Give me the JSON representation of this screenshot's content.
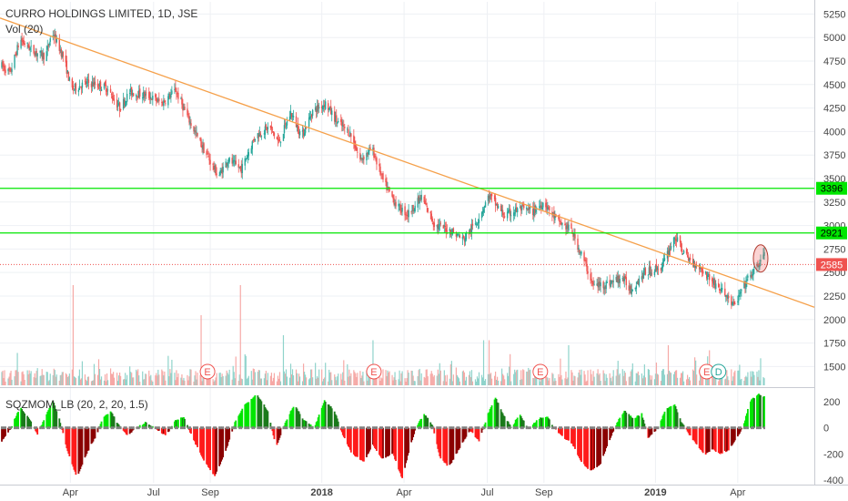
{
  "header": {
    "title": "CURRO HOLDINGS LIMITED, 1D, JSE",
    "volume_label": "Vol (20)",
    "indicator_label": "SQZMOM_LB (20, 2, 20, 1.5)"
  },
  "colors": {
    "up": "#26a69a",
    "down": "#ef5350",
    "trendline": "#f5a04a",
    "level_line": "#00e600",
    "last_price": "#ef5350",
    "mom_bright_green": "#00e600",
    "mom_dark_green": "#1b7a1b",
    "mom_bright_red": "#ff1a1a",
    "mom_dark_red": "#8b0000",
    "squeeze_dot": "#808080",
    "event_earnings": "#ef5350",
    "event_dividend": "#26a69a"
  },
  "chart_data": [
    {
      "type": "candlestick",
      "name": "price",
      "title": "CURRO HOLDINGS LIMITED, 1D, JSE",
      "x_range": [
        "2017-01-16",
        "2019-04-30"
      ],
      "y_range": [
        1300,
        5380
      ],
      "y_ticks": [
        1500,
        1750,
        2000,
        2250,
        2500,
        2750,
        3000,
        3250,
        3500,
        3750,
        4000,
        4250,
        4500,
        4750,
        5000,
        5250
      ],
      "x_ticks": [
        {
          "date": "2017-04-01",
          "label": "Apr"
        },
        {
          "date": "2017-07-01",
          "label": "Jul"
        },
        {
          "date": "2017-09-01",
          "label": "Sep"
        },
        {
          "date": "2018-01-01",
          "label": "2018"
        },
        {
          "date": "2018-04-01",
          "label": "Apr"
        },
        {
          "date": "2018-07-01",
          "label": "Jul"
        },
        {
          "date": "2018-09-01",
          "label": "Sep"
        },
        {
          "date": "2019-01-01",
          "label": "2019"
        },
        {
          "date": "2019-04-01",
          "label": "Apr"
        }
      ],
      "path_keypoints": [
        [
          "2017-01-16",
          4700
        ],
        [
          "2017-01-25",
          4620
        ],
        [
          "2017-02-05",
          4980
        ],
        [
          "2017-02-20",
          4850
        ],
        [
          "2017-03-05",
          4800
        ],
        [
          "2017-03-12",
          5060
        ],
        [
          "2017-03-25",
          4780
        ],
        [
          "2017-04-02",
          4450
        ],
        [
          "2017-04-20",
          4520
        ],
        [
          "2017-05-10",
          4470
        ],
        [
          "2017-05-25",
          4250
        ],
        [
          "2017-06-05",
          4420
        ],
        [
          "2017-06-25",
          4380
        ],
        [
          "2017-07-10",
          4300
        ],
        [
          "2017-07-25",
          4440
        ],
        [
          "2017-08-05",
          4200
        ],
        [
          "2017-08-20",
          3900
        ],
        [
          "2017-09-10",
          3520
        ],
        [
          "2017-09-20",
          3700
        ],
        [
          "2017-10-05",
          3600
        ],
        [
          "2017-10-20",
          3950
        ],
        [
          "2017-11-05",
          4050
        ],
        [
          "2017-11-15",
          3880
        ],
        [
          "2017-11-28",
          4200
        ],
        [
          "2017-12-10",
          3950
        ],
        [
          "2017-12-22",
          4220
        ],
        [
          "2018-01-05",
          4300
        ],
        [
          "2018-01-18",
          4100
        ],
        [
          "2018-02-01",
          3980
        ],
        [
          "2018-02-12",
          3700
        ],
        [
          "2018-02-25",
          3820
        ],
        [
          "2018-03-10",
          3450
        ],
        [
          "2018-03-25",
          3200
        ],
        [
          "2018-04-05",
          3120
        ],
        [
          "2018-04-20",
          3300
        ],
        [
          "2018-05-05",
          3000
        ],
        [
          "2018-05-20",
          2960
        ],
        [
          "2018-06-05",
          2850
        ],
        [
          "2018-06-20",
          3050
        ],
        [
          "2018-07-03",
          3320
        ],
        [
          "2018-07-20",
          3100
        ],
        [
          "2018-08-05",
          3180
        ],
        [
          "2018-08-20",
          3150
        ],
        [
          "2018-09-01",
          3250
        ],
        [
          "2018-09-15",
          3050
        ],
        [
          "2018-10-01",
          2950
        ],
        [
          "2018-10-15",
          2620
        ],
        [
          "2018-10-25",
          2360
        ],
        [
          "2018-11-10",
          2380
        ],
        [
          "2018-11-25",
          2450
        ],
        [
          "2018-12-05",
          2320
        ],
        [
          "2018-12-20",
          2500
        ],
        [
          "2019-01-08",
          2560
        ],
        [
          "2019-01-22",
          2880
        ],
        [
          "2019-02-05",
          2650
        ],
        [
          "2019-02-18",
          2560
        ],
        [
          "2019-03-05",
          2400
        ],
        [
          "2019-03-20",
          2250
        ],
        [
          "2019-03-28",
          2140
        ],
        [
          "2019-04-10",
          2400
        ],
        [
          "2019-04-22",
          2560
        ],
        [
          "2019-04-30",
          2700
        ]
      ],
      "trendline": {
        "from": [
          "2017-02-20",
          5080
        ],
        "to": [
          "2019-04-30",
          2320
        ]
      },
      "horizontal_levels": [
        3396,
        2921
      ],
      "last_price": 2585,
      "price_tags": [
        {
          "value": 3396,
          "label": "3396"
        },
        {
          "value": 2921,
          "label": "2921"
        },
        {
          "value": 2585,
          "label": "2585"
        }
      ],
      "annotation": {
        "type": "ellipse",
        "date": "2019-04-26",
        "value": 2650
      }
    },
    {
      "type": "bar",
      "name": "volume",
      "title": "Vol (20)",
      "spikes": [
        {
          "date": "2017-04-04",
          "rel": 1.0
        },
        {
          "date": "2017-08-22",
          "rel": 0.7
        },
        {
          "date": "2017-10-04",
          "rel": 1.0
        },
        {
          "date": "2017-11-20",
          "rel": 0.5
        },
        {
          "date": "2018-02-26",
          "rel": 0.45
        },
        {
          "date": "2018-06-27",
          "rel": 0.45
        },
        {
          "date": "2018-07-03",
          "rel": 0.45
        },
        {
          "date": "2018-09-28",
          "rel": 0.4
        },
        {
          "date": "2019-01-15",
          "rel": 0.4
        },
        {
          "date": "2019-03-01",
          "rel": 0.35
        }
      ],
      "events": [
        {
          "date": "2017-08-29",
          "label": "E",
          "kind": "earnings"
        },
        {
          "date": "2018-02-27",
          "label": "E",
          "kind": "earnings"
        },
        {
          "date": "2018-08-28",
          "label": "E",
          "kind": "earnings"
        },
        {
          "date": "2019-02-26",
          "label": "E",
          "kind": "earnings"
        },
        {
          "date": "2019-03-11",
          "label": "D",
          "kind": "dividend"
        }
      ]
    },
    {
      "type": "histogram",
      "name": "squeeze_momentum",
      "title": "SQZMOM_LB (20, 2, 20, 1.5)",
      "y_range": [
        -420,
        290
      ],
      "y_ticks": [
        200,
        0,
        -200,
        -400
      ],
      "keypoints": [
        [
          "2017-01-16",
          -100
        ],
        [
          "2017-01-26",
          0
        ],
        [
          "2017-02-05",
          160
        ],
        [
          "2017-02-16",
          60
        ],
        [
          "2017-02-24",
          -50
        ],
        [
          "2017-03-05",
          90
        ],
        [
          "2017-03-13",
          210
        ],
        [
          "2017-03-20",
          70
        ],
        [
          "2017-03-29",
          -180
        ],
        [
          "2017-04-08",
          -380
        ],
        [
          "2017-04-20",
          -180
        ],
        [
          "2017-04-30",
          -50
        ],
        [
          "2017-05-06",
          70
        ],
        [
          "2017-05-15",
          130
        ],
        [
          "2017-05-24",
          20
        ],
        [
          "2017-06-02",
          -60
        ],
        [
          "2017-06-12",
          0
        ],
        [
          "2017-06-22",
          40
        ],
        [
          "2017-07-02",
          0
        ],
        [
          "2017-07-15",
          -60
        ],
        [
          "2017-07-25",
          60
        ],
        [
          "2017-08-03",
          80
        ],
        [
          "2017-08-13",
          -80
        ],
        [
          "2017-08-26",
          -260
        ],
        [
          "2017-09-06",
          -370
        ],
        [
          "2017-09-18",
          -180
        ],
        [
          "2017-09-28",
          40
        ],
        [
          "2017-10-08",
          170
        ],
        [
          "2017-10-22",
          260
        ],
        [
          "2017-11-03",
          130
        ],
        [
          "2017-11-12",
          -150
        ],
        [
          "2017-11-22",
          40
        ],
        [
          "2017-12-02",
          180
        ],
        [
          "2017-12-12",
          60
        ],
        [
          "2017-12-24",
          0
        ],
        [
          "2018-01-04",
          210
        ],
        [
          "2018-01-15",
          130
        ],
        [
          "2018-01-22",
          -20
        ],
        [
          "2018-02-03",
          -200
        ],
        [
          "2018-02-16",
          -260
        ],
        [
          "2018-02-26",
          -130
        ],
        [
          "2018-03-08",
          -240
        ],
        [
          "2018-03-20",
          -200
        ],
        [
          "2018-03-30",
          -390
        ],
        [
          "2018-04-07",
          -160
        ],
        [
          "2018-04-14",
          0
        ],
        [
          "2018-04-23",
          110
        ],
        [
          "2018-05-02",
          20
        ],
        [
          "2018-05-10",
          -220
        ],
        [
          "2018-05-20",
          -300
        ],
        [
          "2018-06-01",
          -150
        ],
        [
          "2018-06-12",
          -20
        ],
        [
          "2018-06-22",
          -100
        ],
        [
          "2018-07-02",
          110
        ],
        [
          "2018-07-10",
          230
        ],
        [
          "2018-07-18",
          110
        ],
        [
          "2018-07-28",
          0
        ],
        [
          "2018-08-05",
          110
        ],
        [
          "2018-08-15",
          -10
        ],
        [
          "2018-08-26",
          70
        ],
        [
          "2018-09-05",
          90
        ],
        [
          "2018-09-12",
          0
        ],
        [
          "2018-09-22",
          -70
        ],
        [
          "2018-10-02",
          -120
        ],
        [
          "2018-10-12",
          -260
        ],
        [
          "2018-10-22",
          -330
        ],
        [
          "2018-11-02",
          -280
        ],
        [
          "2018-11-10",
          -120
        ],
        [
          "2018-11-20",
          40
        ],
        [
          "2018-11-28",
          130
        ],
        [
          "2018-12-08",
          70
        ],
        [
          "2018-12-17",
          110
        ],
        [
          "2018-12-24",
          -80
        ],
        [
          "2019-01-04",
          0
        ],
        [
          "2019-01-12",
          140
        ],
        [
          "2019-01-22",
          180
        ],
        [
          "2019-01-29",
          50
        ],
        [
          "2019-02-06",
          -40
        ],
        [
          "2019-02-14",
          -120
        ],
        [
          "2019-02-24",
          -210
        ],
        [
          "2019-03-04",
          -160
        ],
        [
          "2019-03-12",
          -200
        ],
        [
          "2019-03-22",
          -170
        ],
        [
          "2019-04-01",
          -70
        ],
        [
          "2019-04-08",
          30
        ],
        [
          "2019-04-14",
          200
        ],
        [
          "2019-04-24",
          260
        ],
        [
          "2019-04-30",
          240
        ]
      ]
    }
  ]
}
